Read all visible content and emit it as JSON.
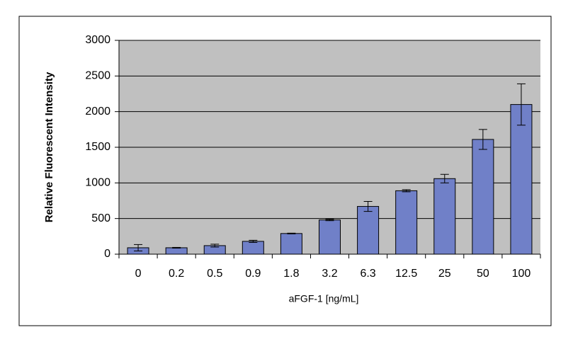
{
  "chart_data": {
    "type": "bar",
    "x_label": "aFGF-1 [ng/mL]",
    "y_label": "Relative Fluorescent Intensity",
    "categories": [
      "0",
      "0.2",
      "0.5",
      "0.9",
      "1.8",
      "3.2",
      "6.3",
      "12.5",
      "25",
      "50",
      "100"
    ],
    "values": [
      90,
      90,
      120,
      180,
      290,
      480,
      670,
      890,
      1060,
      1610,
      2100
    ],
    "errors": [
      45,
      5,
      20,
      15,
      5,
      10,
      70,
      15,
      60,
      140,
      290
    ],
    "color": "#7080c8",
    "ylim": [
      0,
      3000
    ],
    "yticks": [
      0,
      500,
      1000,
      1500,
      2000,
      2500,
      3000
    ],
    "grid": true
  }
}
